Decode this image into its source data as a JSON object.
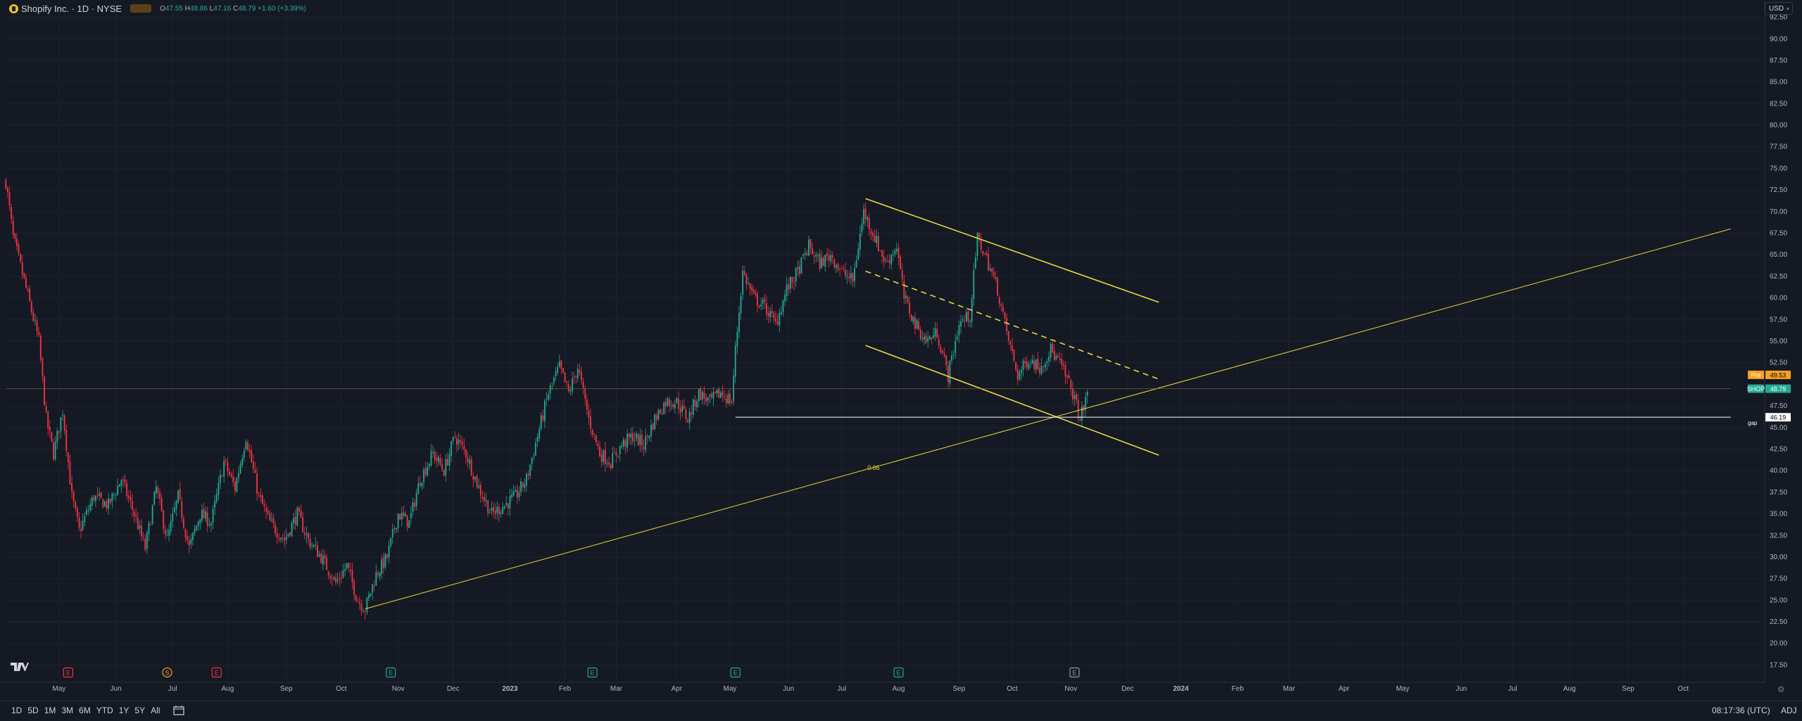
{
  "legend": {
    "title": "Shopify Inc. · 1D · NYSE",
    "eye_label": "",
    "open_label": "O",
    "open": "47.55",
    "high_label": "H",
    "high": "48.86",
    "low_label": "L",
    "low": "47.16",
    "close_label": "C",
    "close": "48.79",
    "change": "+1.60 (+3.39%)"
  },
  "currency": "USD",
  "bottom": {
    "ranges": [
      "1D",
      "5D",
      "1M",
      "3M",
      "6M",
      "YTD",
      "1Y",
      "5Y",
      "All"
    ],
    "clock": "08:17:36 (UTC)",
    "adj": "ADJ"
  },
  "colors": {
    "background": "#151924",
    "up": "#22ab94",
    "down": "#f23645",
    "drawing": "#e8d93a",
    "pre": "#f7a21b"
  },
  "badges": {
    "pre_label": "Pre",
    "pre_value": "49.53",
    "ticker_label": "SHOP",
    "ticker_value": "48.79",
    "gap_value": "46.19",
    "gap_text": "gap"
  },
  "annotations": {
    "fib_label": "0.66"
  },
  "chart_data": {
    "type": "candlestick",
    "symbol": "SHOP",
    "ylim": [
      15.5,
      94.5
    ],
    "y_ticks": [
      "17.50",
      "20.00",
      "22.50",
      "25.00",
      "27.50",
      "30.00",
      "32.50",
      "35.00",
      "37.50",
      "40.00",
      "42.50",
      "45.00",
      "47.50",
      "52.50",
      "55.00",
      "57.50",
      "60.00",
      "62.50",
      "65.00",
      "67.50",
      "70.00",
      "72.50",
      "75.00",
      "77.50",
      "80.00",
      "82.50",
      "85.00",
      "87.50",
      "90.00",
      "92.50"
    ],
    "x_ticks": [
      {
        "label": "May",
        "index": 29
      },
      {
        "label": "Jun",
        "index": 60
      },
      {
        "label": "Jul",
        "index": 91
      },
      {
        "label": "Aug",
        "index": 121
      },
      {
        "label": "Sep",
        "index": 153
      },
      {
        "label": "Oct",
        "index": 183
      },
      {
        "label": "Nov",
        "index": 214
      },
      {
        "label": "Dec",
        "index": 244
      },
      {
        "label": "2023",
        "index": 275
      },
      {
        "label": "Feb",
        "index": 305
      },
      {
        "label": "Mar",
        "index": 333
      },
      {
        "label": "Apr",
        "index": 366
      },
      {
        "label": "May",
        "index": 395
      },
      {
        "label": "Jun",
        "index": 427
      },
      {
        "label": "Jul",
        "index": 456
      },
      {
        "label": "Aug",
        "index": 487
      },
      {
        "label": "Sep",
        "index": 520
      },
      {
        "label": "Oct",
        "index": 549
      },
      {
        "label": "Nov",
        "index": 581
      },
      {
        "label": "Dec",
        "index": 612
      },
      {
        "label": "2024",
        "index": 641
      },
      {
        "label": "Feb",
        "index": 672
      },
      {
        "label": "Mar",
        "index": 700
      },
      {
        "label": "Apr",
        "index": 730
      },
      {
        "label": "May",
        "index": 762
      },
      {
        "label": "Jun",
        "index": 794
      },
      {
        "label": "Jul",
        "index": 822
      },
      {
        "label": "Aug",
        "index": 853
      },
      {
        "label": "Sep",
        "index": 885
      },
      {
        "label": "Oct",
        "index": 915
      }
    ],
    "total_bars": 960,
    "anchors": [
      [
        0,
        73.5
      ],
      [
        4,
        67
      ],
      [
        10,
        62
      ],
      [
        18,
        55
      ],
      [
        22,
        46
      ],
      [
        26,
        42
      ],
      [
        31,
        47
      ],
      [
        36,
        37
      ],
      [
        40,
        33
      ],
      [
        48,
        37
      ],
      [
        56,
        36
      ],
      [
        63,
        39
      ],
      [
        70,
        35
      ],
      [
        76,
        31
      ],
      [
        82,
        38
      ],
      [
        88,
        32
      ],
      [
        94,
        37
      ],
      [
        100,
        31
      ],
      [
        106,
        35
      ],
      [
        112,
        34
      ],
      [
        119,
        41
      ],
      [
        125,
        38
      ],
      [
        131,
        44
      ],
      [
        138,
        37
      ],
      [
        144,
        34
      ],
      [
        152,
        32
      ],
      [
        159,
        35
      ],
      [
        165,
        32
      ],
      [
        172,
        30
      ],
      [
        180,
        27
      ],
      [
        186,
        29
      ],
      [
        192,
        25
      ],
      [
        196,
        24
      ],
      [
        202,
        28
      ],
      [
        208,
        30
      ],
      [
        214,
        35
      ],
      [
        220,
        34
      ],
      [
        226,
        39
      ],
      [
        233,
        42
      ],
      [
        239,
        40
      ],
      [
        245,
        44
      ],
      [
        251,
        42
      ],
      [
        258,
        38
      ],
      [
        265,
        35
      ],
      [
        272,
        36
      ],
      [
        278,
        37
      ],
      [
        284,
        39
      ],
      [
        290,
        44
      ],
      [
        296,
        49
      ],
      [
        302,
        52
      ],
      [
        307,
        49
      ],
      [
        312,
        52
      ],
      [
        318,
        46
      ],
      [
        324,
        42
      ],
      [
        330,
        41
      ],
      [
        336,
        43
      ],
      [
        342,
        44
      ],
      [
        348,
        43
      ],
      [
        354,
        46
      ],
      [
        360,
        48
      ],
      [
        366,
        48
      ],
      [
        372,
        46
      ],
      [
        378,
        49
      ],
      [
        384,
        48
      ],
      [
        390,
        49
      ],
      [
        396,
        48
      ],
      [
        398,
        54
      ],
      [
        402,
        63
      ],
      [
        408,
        60
      ],
      [
        414,
        59
      ],
      [
        420,
        57
      ],
      [
        426,
        61
      ],
      [
        432,
        63
      ],
      [
        438,
        66
      ],
      [
        444,
        64
      ],
      [
        450,
        65
      ],
      [
        456,
        63
      ],
      [
        462,
        62
      ],
      [
        468,
        70
      ],
      [
        474,
        67
      ],
      [
        480,
        64
      ],
      [
        486,
        66
      ],
      [
        490,
        60
      ],
      [
        496,
        57
      ],
      [
        502,
        55
      ],
      [
        508,
        56
      ],
      [
        514,
        51
      ],
      [
        520,
        57
      ],
      [
        526,
        58
      ],
      [
        530,
        67
      ],
      [
        536,
        64
      ],
      [
        541,
        61
      ],
      [
        546,
        56
      ],
      [
        552,
        51
      ],
      [
        558,
        53
      ],
      [
        564,
        52
      ],
      [
        570,
        54
      ],
      [
        576,
        52
      ],
      [
        582,
        49
      ],
      [
        586,
        46
      ],
      [
        590,
        48.8
      ]
    ],
    "trendlines": [
      {
        "style": "solid",
        "from": [
          469,
          71.5
        ],
        "to": [
          629,
          59.5
        ]
      },
      {
        "style": "solid",
        "from": [
          469,
          54.5
        ],
        "to": [
          629,
          41.8
        ]
      },
      {
        "style": "dashed",
        "from": [
          469,
          63.1
        ],
        "to": [
          629,
          50.6
        ]
      },
      {
        "style": "solid",
        "from": [
          196,
          24
        ],
        "to": [
          941,
          68
        ]
      },
      {
        "style": "hline",
        "from": [
          398,
          46.19
        ],
        "to": [
          941,
          46.19
        ]
      },
      {
        "style": "thin",
        "from": [
          0,
          49.5
        ],
        "to": [
          941,
          49.5
        ]
      }
    ],
    "events": [
      {
        "index": 34,
        "type": "earnings",
        "label": "E",
        "color": "#f23645"
      },
      {
        "index": 88,
        "type": "split",
        "label": "S",
        "color": "#f7a21b"
      },
      {
        "index": 115,
        "type": "earnings",
        "label": "E",
        "color": "#f23645"
      },
      {
        "index": 210,
        "type": "earnings",
        "label": "E",
        "color": "#22ab94"
      },
      {
        "index": 320,
        "type": "earnings",
        "label": "E",
        "color": "#22ab94"
      },
      {
        "index": 398,
        "type": "earnings",
        "label": "E",
        "color": "#22ab94"
      },
      {
        "index": 487,
        "type": "earnings",
        "label": "E",
        "color": "#22ab94"
      },
      {
        "index": 583,
        "type": "earnings",
        "label": "E",
        "color": "#9598a1"
      }
    ]
  }
}
